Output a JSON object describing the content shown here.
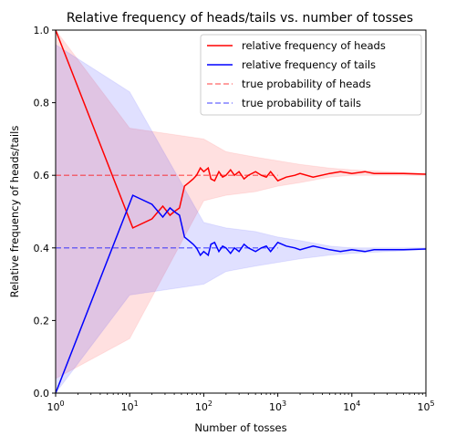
{
  "chart_data": {
    "type": "line",
    "title": "Relative frequency of heads/tails vs. number of tosses",
    "xlabel": "Number of tosses",
    "ylabel": "Relative frequency of heads/tails",
    "xscale": "log",
    "xlim": [
      1,
      100000
    ],
    "ylim": [
      0.0,
      1.0
    ],
    "grid": false,
    "legend_position": "top-right",
    "x_ticks": [
      {
        "value": 1,
        "base": "10",
        "exp": "0"
      },
      {
        "value": 10,
        "base": "10",
        "exp": "1"
      },
      {
        "value": 100,
        "base": "10",
        "exp": "2"
      },
      {
        "value": 1000,
        "base": "10",
        "exp": "3"
      },
      {
        "value": 10000,
        "base": "10",
        "exp": "4"
      },
      {
        "value": 100000,
        "base": "10",
        "exp": "5"
      }
    ],
    "y_ticks": [
      {
        "value": 0.0,
        "label": "0.0"
      },
      {
        "value": 0.2,
        "label": "0.2"
      },
      {
        "value": 0.4,
        "label": "0.4"
      },
      {
        "value": 0.6,
        "label": "0.6"
      },
      {
        "value": 0.8,
        "label": "0.8"
      },
      {
        "value": 1.0,
        "label": "1.0"
      }
    ],
    "series": [
      {
        "name": "relative frequency of heads",
        "color": "#ff0000",
        "style": "solid",
        "x": [
          1,
          11,
          20,
          28,
          35,
          40,
          47,
          55,
          63,
          72,
          80,
          90,
          100,
          115,
          125,
          140,
          160,
          180,
          200,
          230,
          260,
          300,
          350,
          400,
          500,
          600,
          700,
          800,
          1000,
          1300,
          1700,
          2000,
          3000,
          5000,
          7000,
          10000,
          15000,
          20000,
          30000,
          50000,
          100000
        ],
        "y": [
          1.0,
          0.455,
          0.48,
          0.515,
          0.49,
          0.5,
          0.51,
          0.57,
          0.58,
          0.59,
          0.6,
          0.62,
          0.61,
          0.62,
          0.59,
          0.585,
          0.61,
          0.595,
          0.6,
          0.615,
          0.6,
          0.61,
          0.59,
          0.6,
          0.61,
          0.6,
          0.595,
          0.61,
          0.585,
          0.595,
          0.6,
          0.605,
          0.595,
          0.605,
          0.61,
          0.605,
          0.61,
          0.605,
          0.605,
          0.605,
          0.603
        ]
      },
      {
        "name": "relative frequency of tails",
        "color": "#0000ff",
        "style": "solid",
        "x": [
          1,
          11,
          20,
          28,
          35,
          40,
          47,
          55,
          63,
          72,
          80,
          90,
          100,
          115,
          125,
          140,
          160,
          180,
          200,
          230,
          260,
          300,
          350,
          400,
          500,
          600,
          700,
          800,
          1000,
          1300,
          1700,
          2000,
          3000,
          5000,
          7000,
          10000,
          15000,
          20000,
          30000,
          50000,
          100000
        ],
        "y": [
          0.0,
          0.545,
          0.52,
          0.485,
          0.51,
          0.5,
          0.49,
          0.43,
          0.42,
          0.41,
          0.4,
          0.38,
          0.39,
          0.38,
          0.41,
          0.415,
          0.39,
          0.405,
          0.4,
          0.385,
          0.4,
          0.39,
          0.41,
          0.4,
          0.39,
          0.4,
          0.405,
          0.39,
          0.415,
          0.405,
          0.4,
          0.395,
          0.405,
          0.395,
          0.39,
          0.395,
          0.39,
          0.395,
          0.395,
          0.395,
          0.397
        ]
      },
      {
        "name": "true probability of heads",
        "color": "#ff0000",
        "style": "dashed",
        "x": [
          1,
          1000
        ],
        "y": [
          0.6,
          0.6
        ]
      },
      {
        "name": "true probability of tails",
        "color": "#0000ff",
        "style": "dashed",
        "x": [
          1,
          1000
        ],
        "y": [
          0.4,
          0.4
        ]
      }
    ],
    "bands": [
      {
        "series": "relative frequency of heads",
        "color": "#ff0000",
        "x": [
          1,
          10,
          100,
          200,
          500,
          1000,
          2000,
          5000,
          10000,
          100000
        ],
        "lower": [
          0.04,
          0.15,
          0.53,
          0.545,
          0.555,
          0.57,
          0.58,
          0.595,
          0.6,
          0.6
        ],
        "upper": [
          1.0,
          0.73,
          0.7,
          0.665,
          0.65,
          0.64,
          0.63,
          0.62,
          0.615,
          0.605
        ]
      },
      {
        "series": "relative frequency of tails",
        "color": "#0000ff",
        "x": [
          1,
          10,
          100,
          200,
          500,
          1000,
          2000,
          5000,
          10000,
          100000
        ],
        "lower": [
          0.0,
          0.27,
          0.3,
          0.335,
          0.35,
          0.36,
          0.37,
          0.38,
          0.385,
          0.395
        ],
        "upper": [
          0.96,
          0.83,
          0.47,
          0.455,
          0.445,
          0.43,
          0.42,
          0.405,
          0.4,
          0.4
        ]
      }
    ]
  }
}
